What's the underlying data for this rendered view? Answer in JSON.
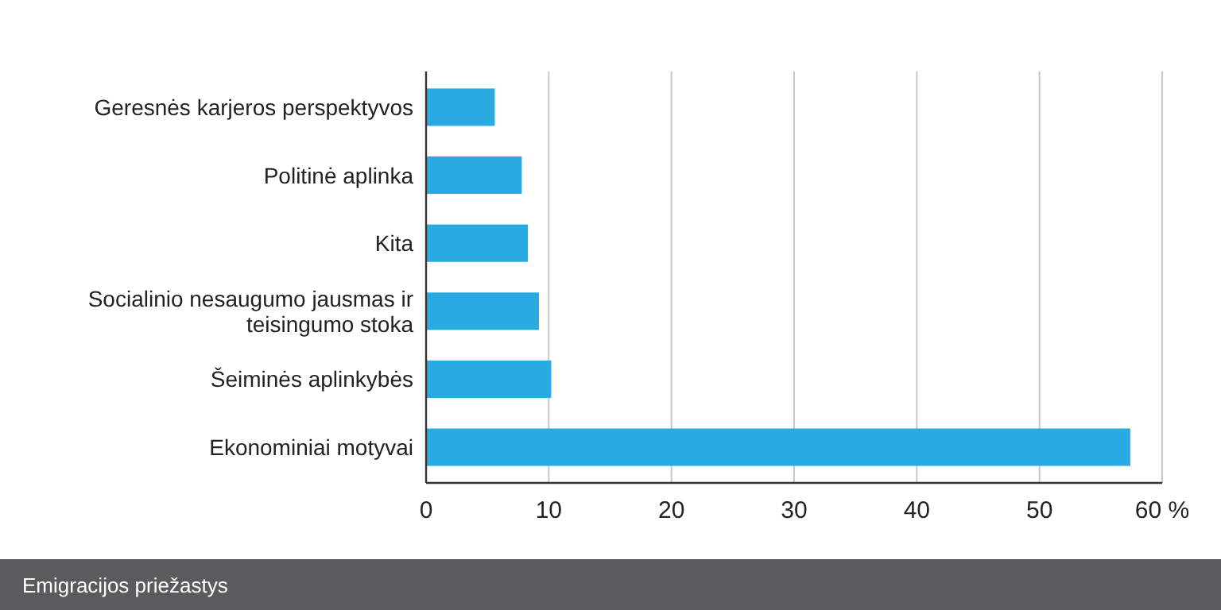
{
  "chart_data": {
    "type": "bar",
    "orientation": "horizontal",
    "title": "Emigracijos priežastys",
    "categories": [
      "Geresnės karjeros perspektyvos",
      "Politinė aplinka",
      "Kita",
      "Socialinio nesaugumo jausmas ir teisingumo stoka",
      "Šeiminės aplinkybės",
      "Ekonominiai motyvai"
    ],
    "values": [
      5.6,
      7.8,
      8.3,
      9.2,
      10.2,
      57.4
    ],
    "color": "#29abe2",
    "xlim": [
      0,
      60
    ],
    "xticks": [
      0,
      10,
      20,
      30,
      40,
      50,
      {
        "value": 60,
        "label": "60 %"
      }
    ],
    "grid": "x"
  }
}
